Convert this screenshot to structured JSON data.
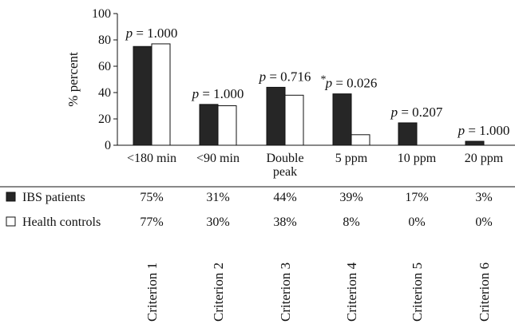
{
  "chart_data": {
    "type": "bar",
    "ylabel": "% percent",
    "ylim": [
      0,
      100
    ],
    "yticks": [
      0,
      20,
      40,
      60,
      80,
      100
    ],
    "categories": [
      {
        "lines": [
          "<180 min"
        ],
        "criterion": "Criterion 1",
        "pvalue": "p = 1.000",
        "star": ""
      },
      {
        "lines": [
          "<90 min"
        ],
        "criterion": "Criterion 2",
        "pvalue": "p = 1.000",
        "star": ""
      },
      {
        "lines": [
          "Double",
          "peak"
        ],
        "criterion": "Criterion 3",
        "pvalue": "p = 0.716",
        "star": ""
      },
      {
        "lines": [
          "5 ppm"
        ],
        "criterion": "Criterion 4",
        "pvalue": "p = 0.026",
        "star": "*"
      },
      {
        "lines": [
          "10 ppm"
        ],
        "criterion": "Criterion 5",
        "pvalue": "p = 0.207",
        "star": ""
      },
      {
        "lines": [
          "20 ppm"
        ],
        "criterion": "Criterion 6",
        "pvalue": "p = 1.000",
        "star": ""
      }
    ],
    "series": [
      {
        "name": "IBS patients",
        "values": [
          75,
          31,
          44,
          39,
          17,
          3
        ],
        "labels": [
          "75%",
          "31%",
          "44%",
          "39%",
          "17%",
          "3%"
        ],
        "color": "#262626"
      },
      {
        "name": "Health controls",
        "values": [
          77,
          30,
          38,
          8,
          0,
          0
        ],
        "labels": [
          "77%",
          "30%",
          "38%",
          "8%",
          "0%",
          "0%"
        ],
        "color": "#ffffff"
      }
    ]
  }
}
